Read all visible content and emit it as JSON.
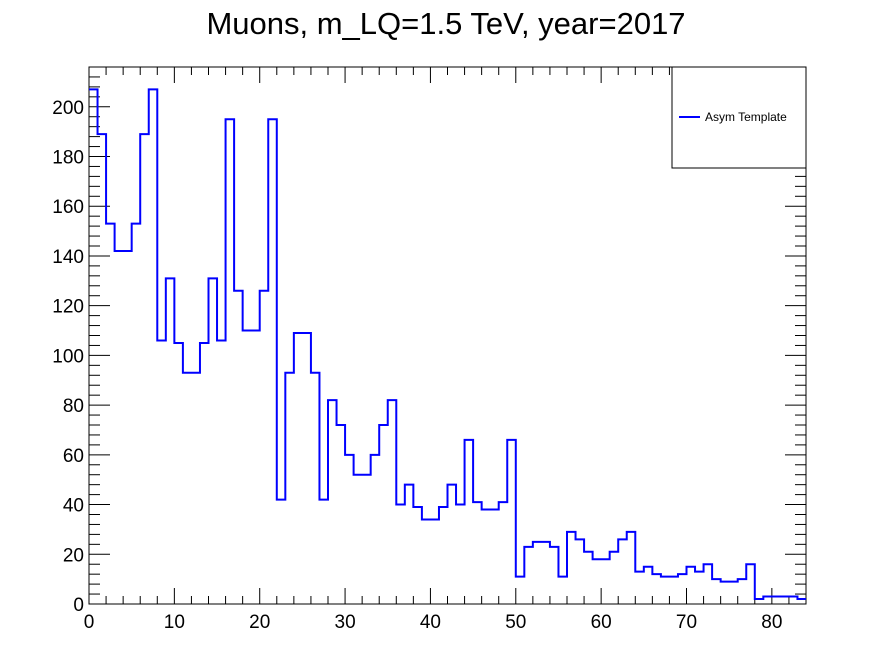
{
  "chart_data": {
    "type": "bar",
    "style": "step-histogram",
    "title": "Muons, m_LQ=1.5 TeV, year=2017",
    "xlabel": "",
    "ylabel": "",
    "xlim": [
      0,
      84
    ],
    "ylim": [
      0,
      216
    ],
    "bin_width": 1,
    "x_major_ticks": [
      0,
      10,
      20,
      30,
      40,
      50,
      60,
      70,
      80
    ],
    "x_tick_labels": [
      "0",
      "10",
      "20",
      "30",
      "40",
      "50",
      "60",
      "70",
      "80"
    ],
    "y_major_ticks": [
      0,
      20,
      40,
      60,
      80,
      100,
      120,
      140,
      160,
      180,
      200
    ],
    "y_tick_labels": [
      "0",
      "20",
      "40",
      "60",
      "80",
      "100",
      "120",
      "140",
      "160",
      "180",
      "200"
    ],
    "grid": false,
    "legend_position": "top-right",
    "line_color": "#0000ff",
    "series": [
      {
        "name": "Asym Template",
        "values": [
          207,
          189,
          153,
          142,
          142,
          153,
          189,
          207,
          106,
          131,
          105,
          93,
          93,
          105,
          131,
          106,
          195,
          126,
          110,
          110,
          126,
          195,
          42,
          93,
          109,
          109,
          93,
          42,
          82,
          72,
          60,
          52,
          52,
          60,
          72,
          82,
          40,
          48,
          39,
          34,
          34,
          39,
          48,
          40,
          66,
          41,
          38,
          38,
          41,
          66,
          11,
          23,
          25,
          25,
          23,
          11,
          29,
          26,
          21,
          18,
          18,
          21,
          26,
          29,
          13,
          15,
          12,
          11,
          11,
          12,
          15,
          13,
          16,
          10,
          9,
          9,
          10,
          16,
          2,
          3,
          3,
          3,
          3,
          2
        ]
      }
    ]
  }
}
